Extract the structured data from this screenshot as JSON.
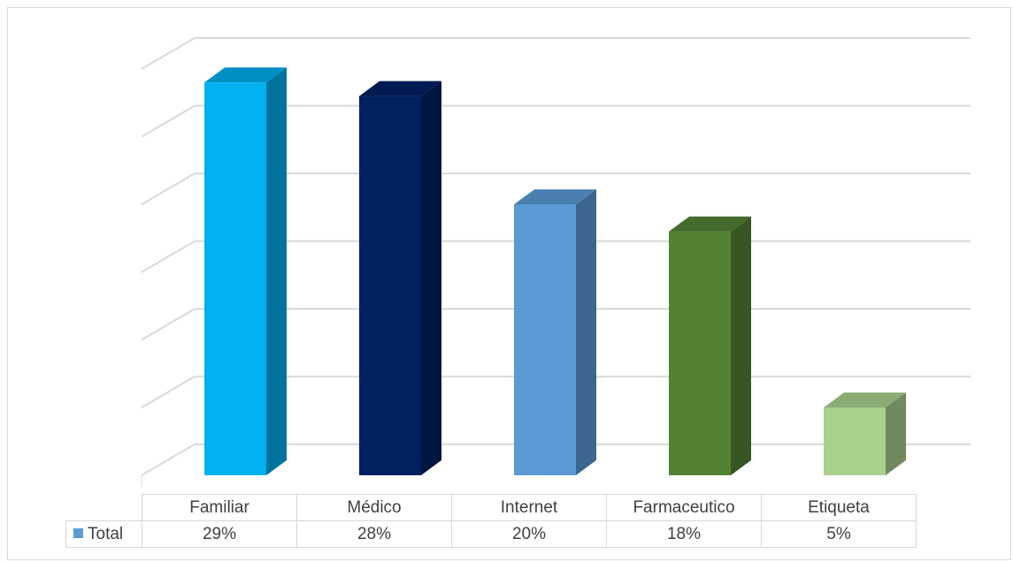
{
  "chart_data": {
    "type": "bar",
    "title": "",
    "xlabel": "",
    "ylabel": "",
    "ylim": [
      0,
      30
    ],
    "grid": true,
    "legend": "data-table",
    "categories": [
      "Familiar",
      "Médico",
      "Internet",
      "Farmaceutico",
      "Etiqueta"
    ],
    "series": [
      {
        "name": "Total",
        "values": [
          29,
          28,
          20,
          18,
          5
        ],
        "value_labels": [
          "29%",
          "28%",
          "20%",
          "18%",
          "5%"
        ],
        "legend_color": "#5b9bd5"
      }
    ],
    "bar_colors": [
      "#00b0f0",
      "#002060",
      "#5b9bd5",
      "#548235",
      "#a9d18e"
    ]
  }
}
